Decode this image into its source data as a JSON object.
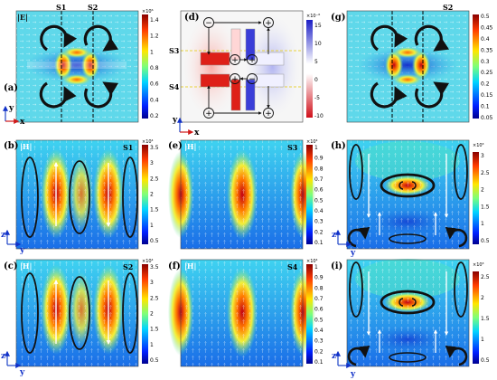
{
  "panels": {
    "a": {
      "label": "(a)",
      "field": "|E|",
      "cuts": [
        "S1",
        "S2"
      ],
      "axes": [
        "y",
        "x"
      ],
      "colorbar": {
        "exponent": "×10⁶",
        "ticks": [
          "1.4",
          "1.2",
          "1",
          "0.8",
          "0.6",
          "0.4",
          "0.2"
        ]
      }
    },
    "d": {
      "label": "(d)",
      "cuts": [
        "S3",
        "S4"
      ],
      "axes": [
        "y",
        "x"
      ],
      "signs": [
        "+",
        "−"
      ],
      "colorbar": {
        "exponent": "×10⁻⁶",
        "ticks": [
          "15",
          "10",
          "5",
          "0",
          "-5",
          "-10"
        ]
      }
    },
    "g": {
      "label": "(g)",
      "cuts": [
        "S2"
      ],
      "colorbar": {
        "ticks": [
          "0.5",
          "0.45",
          "0.4",
          "0.35",
          "0.3",
          "0.25",
          "0.2",
          "0.15",
          "0.1",
          "0.05"
        ]
      }
    },
    "b": {
      "label": "(b)",
      "field": "|H|",
      "cut": "S1",
      "axes": [
        "z",
        "y"
      ],
      "colorbar": {
        "exponent": "×10⁴",
        "ticks": [
          "3.5",
          "3",
          "2.5",
          "2",
          "1.5",
          "1",
          "0.5"
        ]
      }
    },
    "c": {
      "label": "(c)",
      "field": "|H|",
      "cut": "S2",
      "axes": [
        "z",
        "y"
      ],
      "colorbar": {
        "exponent": "×10⁴",
        "ticks": [
          "3.5",
          "3",
          "2.5",
          "2",
          "1.5",
          "1",
          "0.5"
        ]
      }
    },
    "e": {
      "label": "(e)",
      "field": "|H|",
      "cut": "S3",
      "colorbar": {
        "exponent": "×10⁴",
        "ticks": [
          "1",
          "0.9",
          "0.8",
          "0.7",
          "0.6",
          "0.5",
          "0.4",
          "0.3",
          "0.2",
          "0.1"
        ]
      }
    },
    "f": {
      "label": "(f)",
      "field": "|H|",
      "cut": "S4",
      "colorbar": {
        "exponent": "×10⁴",
        "ticks": [
          "1",
          "0.9",
          "0.8",
          "0.7",
          "0.6",
          "0.5",
          "0.4",
          "0.3",
          "0.2",
          "0.1"
        ]
      }
    },
    "h": {
      "label": "(h)",
      "axes": [
        "z",
        "y"
      ],
      "colorbar": {
        "exponent": "×10³",
        "ticks": [
          "3",
          "2.5",
          "2",
          "1.5",
          "1",
          "0.5"
        ]
      }
    },
    "i": {
      "label": "(i)",
      "axes": [
        "z",
        "y"
      ],
      "colorbar": {
        "exponent": "×10³",
        "ticks": [
          "2.5",
          "2",
          "1.5",
          "1",
          "0.5"
        ]
      }
    }
  },
  "colors": {
    "jet_low": "#0a1fd6",
    "jet_high": "#c4001a",
    "diverge_neg": "#d6231e",
    "diverge_pos": "#2a2fd0",
    "ring": "#111111"
  }
}
